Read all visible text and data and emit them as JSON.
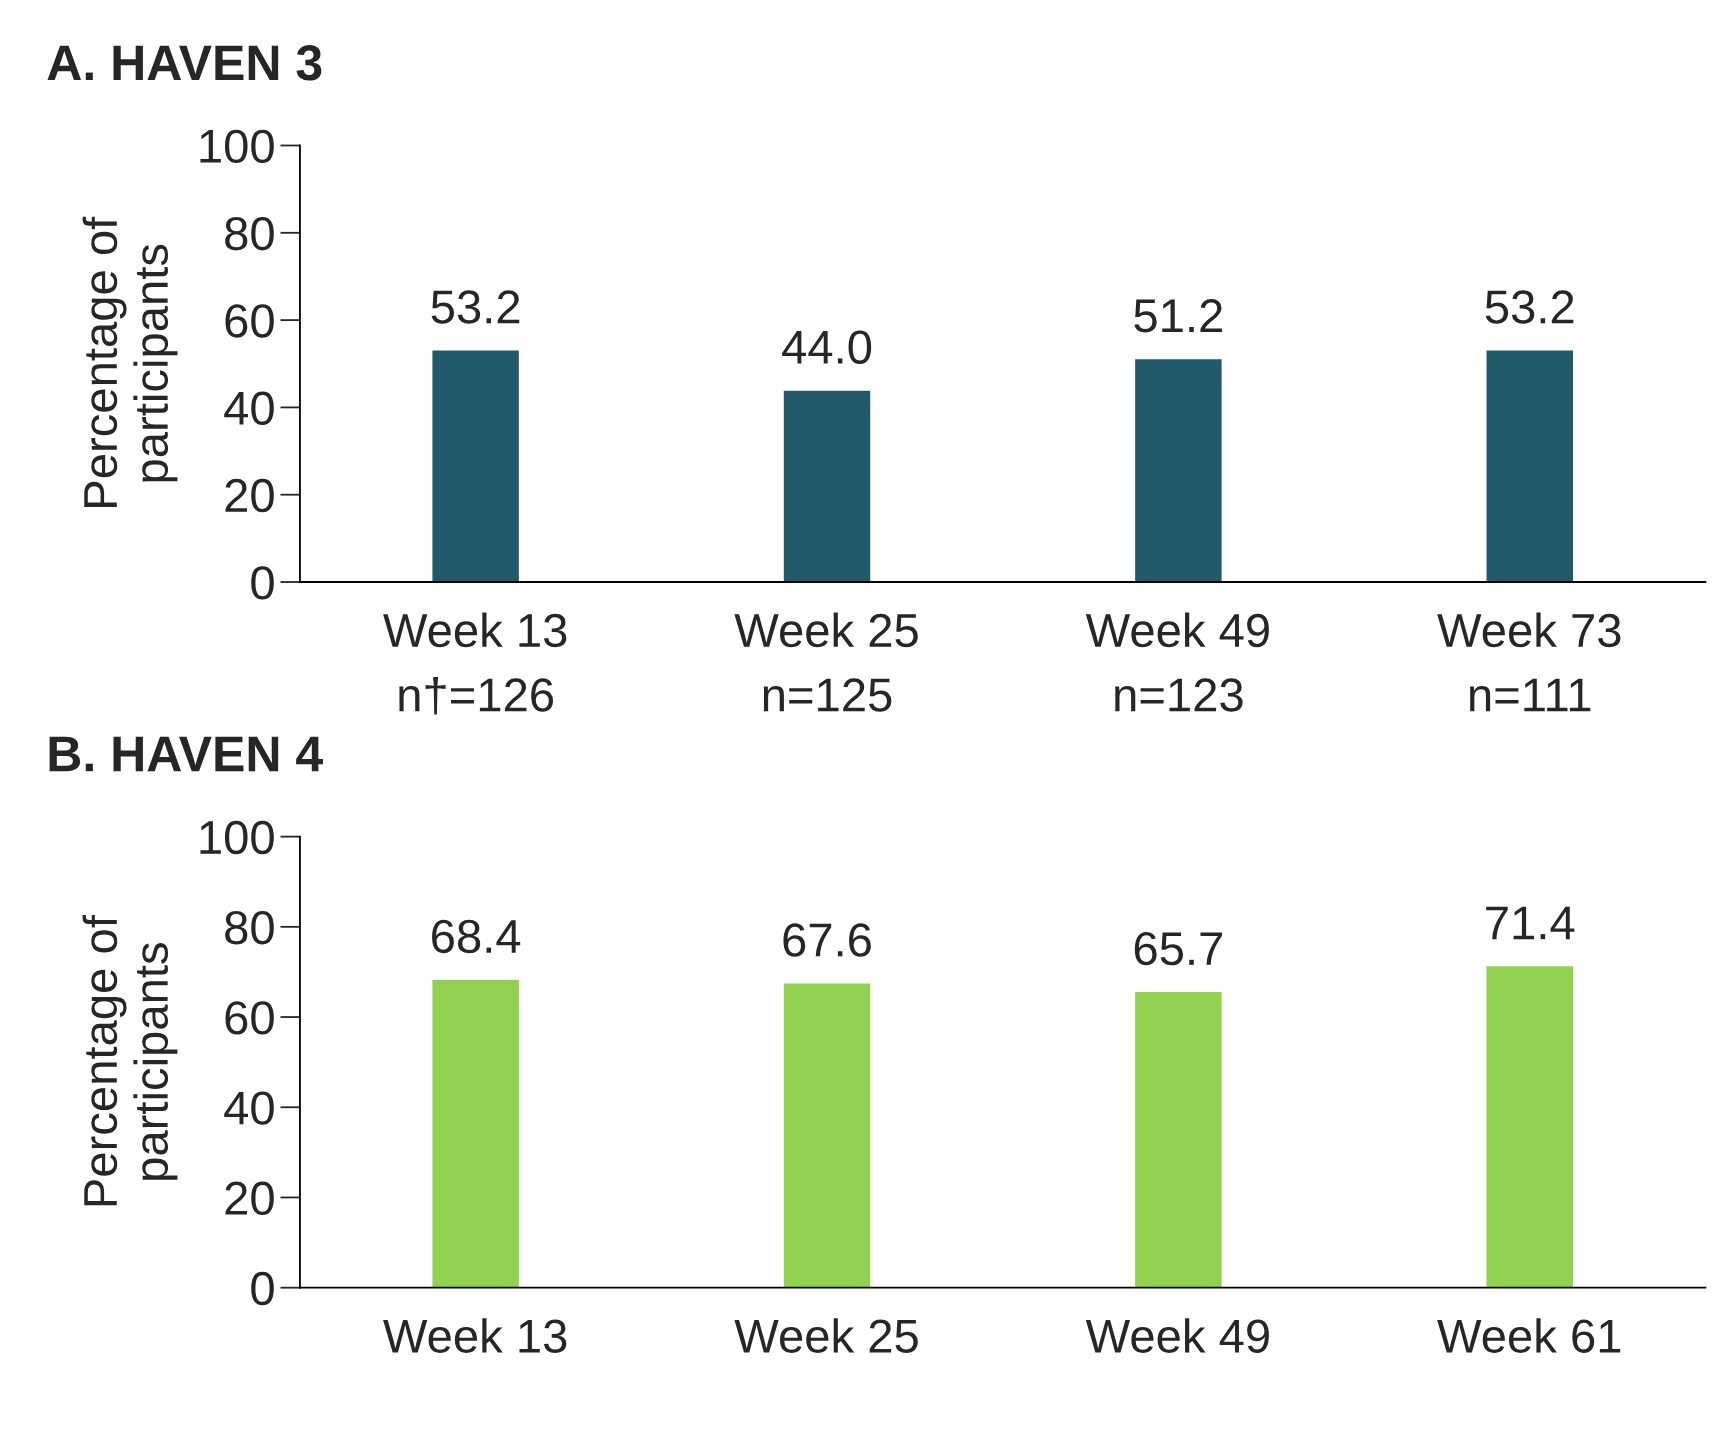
{
  "chart_data": [
    {
      "type": "bar",
      "title": "A. HAVEN 3",
      "ylabel": "Percentage of\nparticipants",
      "categories": [
        "Week 13\nn†=126",
        "Week 25\nn=125",
        "Week 49\nn=123",
        "Week 73\nn=111"
      ],
      "values": [
        53.2,
        44.0,
        51.2,
        53.2
      ],
      "value_labels": [
        "53.2",
        "44.0",
        "51.2",
        "53.2"
      ],
      "color": "#235a69",
      "ylim": [
        0,
        100
      ],
      "yticks": [
        0,
        20,
        40,
        60,
        80,
        100
      ],
      "grid": false,
      "legend": false
    },
    {
      "type": "bar",
      "title": "B. HAVEN 4",
      "ylabel": "Percentage of\nparticipants",
      "categories": [
        "Week 13",
        "Week 25",
        "Week 49",
        "Week 61"
      ],
      "values": [
        68.4,
        67.6,
        65.7,
        71.4
      ],
      "data_labels": true,
      "color": "#92d050",
      "ylim": [
        0,
        100
      ],
      "yticks": [
        0,
        20,
        40,
        60,
        80,
        100
      ],
      "grid": false,
      "legend": false
    }
  ]
}
